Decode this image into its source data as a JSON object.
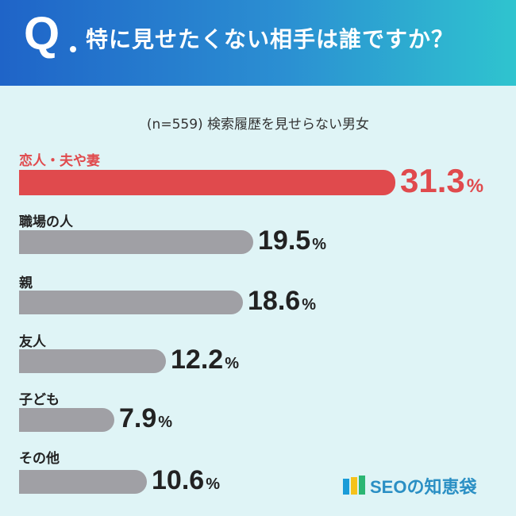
{
  "header": {
    "q_mark": "Q",
    "question": "特に見せたくない相手は誰ですか？"
  },
  "subtitle": "(n=559) 検索履歴を見せらない男女",
  "chart_data": {
    "type": "bar",
    "orientation": "horizontal",
    "categories": [
      "恋人・夫や妻",
      "職場の人",
      "親",
      "友人",
      "子ども",
      "その他"
    ],
    "values": [
      31.3,
      19.5,
      18.6,
      12.2,
      7.9,
      10.6
    ],
    "unit": "%",
    "highlight_index": 0,
    "colors": {
      "highlight": "#e04a4d",
      "default": "#a0a0a5"
    }
  },
  "logo": {
    "text": "SEOの知恵袋",
    "colors": [
      "#1a9cd8",
      "#f5c21b",
      "#2bb673"
    ]
  }
}
